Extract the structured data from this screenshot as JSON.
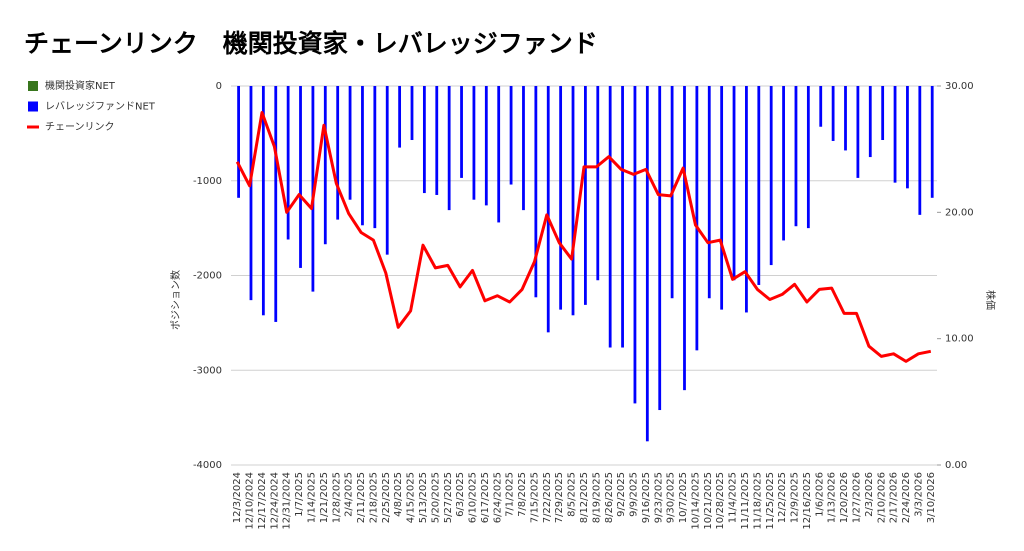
{
  "chart_data": {
    "type": "combo",
    "title": "チェーンリンク　機関投資家・レバレッジファンド",
    "ylabel": "ポジション数",
    "y2label": "株価",
    "categories": [
      "12/3/2024",
      "12/10/2024",
      "12/17/2024",
      "12/24/2024",
      "12/31/2024",
      "1/7/2025",
      "1/14/2025",
      "1/21/2025",
      "1/28/2025",
      "2/4/2025",
      "2/11/2025",
      "2/18/2025",
      "2/25/2025",
      "4/8/2025",
      "4/15/2025",
      "5/13/2025",
      "5/20/2025",
      "5/27/2025",
      "6/3/2025",
      "6/10/2025",
      "6/17/2025",
      "6/24/2025",
      "7/1/2025",
      "7/8/2025",
      "7/15/2025",
      "7/22/2025",
      "7/29/2025",
      "8/5/2025",
      "8/12/2025",
      "8/19/2025",
      "8/26/2025",
      "9/2/2025",
      "9/9/2025",
      "9/16/2025",
      "9/23/2025",
      "9/30/2025",
      "10/7/2025",
      "10/14/2025",
      "10/21/2025",
      "10/28/2025",
      "11/4/2025",
      "11/11/2025",
      "11/18/2025",
      "11/25/2025",
      "12/2/2025",
      "12/9/2025",
      "12/16/2025",
      "1/6/2026",
      "1/13/2026",
      "1/20/2026",
      "1/27/2026",
      "2/3/2026",
      "2/10/2026",
      "2/17/2026",
      "2/24/2026",
      "3/3/2026",
      "3/10/2026"
    ],
    "series": [
      {
        "name": "機関投資家NET",
        "type": "bar",
        "color": "#38761d",
        "values": [
          null,
          null,
          null,
          null,
          null,
          null,
          null,
          null,
          null,
          null,
          null,
          null,
          null,
          null,
          null,
          null,
          null,
          null,
          null,
          null,
          null,
          null,
          null,
          null,
          null,
          null,
          null,
          null,
          null,
          null,
          null,
          null,
          null,
          null,
          null,
          null,
          null,
          null,
          null,
          null,
          null,
          null,
          null,
          null,
          null,
          null,
          null,
          null,
          null,
          null,
          null,
          null,
          null,
          null,
          null,
          null,
          null
        ]
      },
      {
        "name": "レバレッジファンドNET",
        "type": "bar",
        "color": "#0000ff",
        "values": [
          -1180,
          -2260,
          -2420,
          -2490,
          -1620,
          -1920,
          -2170,
          -1670,
          -1410,
          -1200,
          -1470,
          -1500,
          -1780,
          -650,
          -570,
          -1130,
          -1150,
          -1310,
          -970,
          -1200,
          -1260,
          -1440,
          -1040,
          -1310,
          -2230,
          -2600,
          -2360,
          -2420,
          -2310,
          -2050,
          -2760,
          -2760,
          -3350,
          -3750,
          -3420,
          -2240,
          -3210,
          -2790,
          -2240,
          -2360,
          -2050,
          -2390,
          -2100,
          -1890,
          -1630,
          -1480,
          -1500,
          -430,
          -580,
          -680,
          -970,
          -750,
          -570,
          -1020,
          -1080,
          -1360,
          -1180
        ]
      },
      {
        "name": "チェーンリンク",
        "type": "line",
        "axis": "y2",
        "color": "#ff0000",
        "values": [
          24.0,
          22.1,
          27.9,
          25.2,
          20.0,
          21.4,
          20.3,
          26.9,
          22.3,
          19.9,
          18.4,
          17.8,
          15.2,
          10.9,
          12.2,
          17.4,
          15.6,
          15.8,
          14.1,
          15.4,
          13.0,
          13.4,
          12.9,
          13.9,
          16.1,
          19.8,
          17.6,
          16.3,
          23.6,
          23.6,
          24.4,
          23.4,
          23.0,
          23.4,
          21.4,
          21.3,
          23.5,
          19.0,
          17.6,
          17.8,
          14.7,
          15.3,
          13.9,
          13.1,
          13.5,
          14.3,
          12.9,
          13.9,
          14.0,
          12.0,
          12.0,
          9.4,
          8.6,
          8.8,
          8.2,
          8.8,
          9.0
        ]
      }
    ],
    "ylim": [
      -4000,
      0
    ],
    "yticks": [
      0,
      -1000,
      -2000,
      -3000,
      -4000
    ],
    "y2lim": [
      0,
      30
    ],
    "y2ticks": [
      {
        "value": 30,
        "label": "30.00"
      },
      {
        "value": 20,
        "label": "20.00"
      },
      {
        "value": 10,
        "label": "10.00"
      },
      {
        "value": 0,
        "label": "0.00"
      }
    ],
    "grid": true,
    "legend": "left"
  }
}
